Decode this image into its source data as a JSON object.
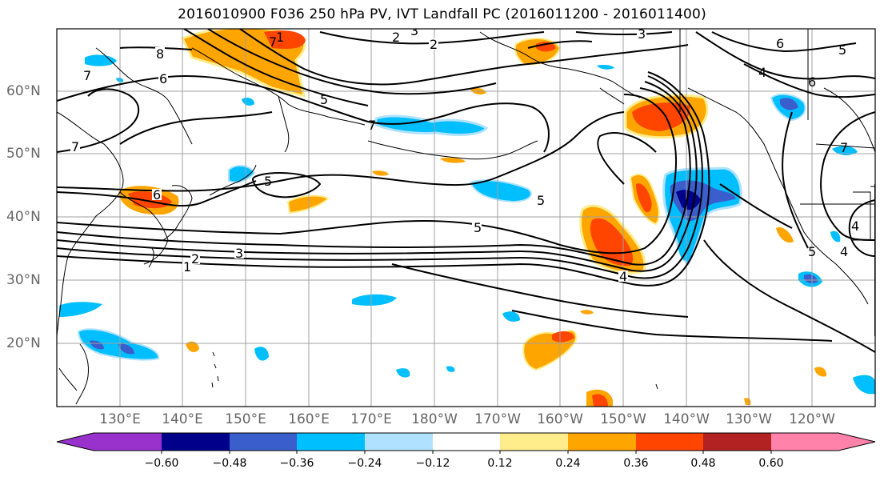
{
  "title": "2016010900 F036 250 hPa PV, IVT Landfall PC (2016011200 - 2016011400)",
  "map": {
    "lat_labels": [
      "60°N",
      "50°N",
      "40°N",
      "30°N",
      "20°N"
    ],
    "lon_labels": [
      "130°E",
      "140°E",
      "150°E",
      "160°E",
      "170°E",
      "180°W",
      "170°W",
      "160°W",
      "150°W",
      "140°W",
      "130°W",
      "120°W"
    ],
    "contour_labels": [
      "1",
      "2",
      "3",
      "4",
      "5",
      "6",
      "7",
      "8",
      "3",
      "2",
      "6",
      "7",
      "5",
      "4",
      "7",
      "5",
      "6",
      "5",
      "4",
      "3",
      "2",
      "1",
      "5",
      "7",
      "6",
      "4",
      "5",
      "7"
    ]
  },
  "colorbar": {
    "ticks": [
      "−0.60",
      "−0.48",
      "−0.36",
      "−0.24",
      "−0.12",
      "0.12",
      "0.24",
      "0.36",
      "0.48",
      "0.60"
    ],
    "colors": [
      "#9932cc",
      "#00008b",
      "#3a5fcd",
      "#00bfff",
      "#b0e2ff",
      "#ffffff",
      "#ffec8b",
      "#ffa500",
      "#ff4500",
      "#b22222",
      "#ff82ab"
    ]
  }
}
